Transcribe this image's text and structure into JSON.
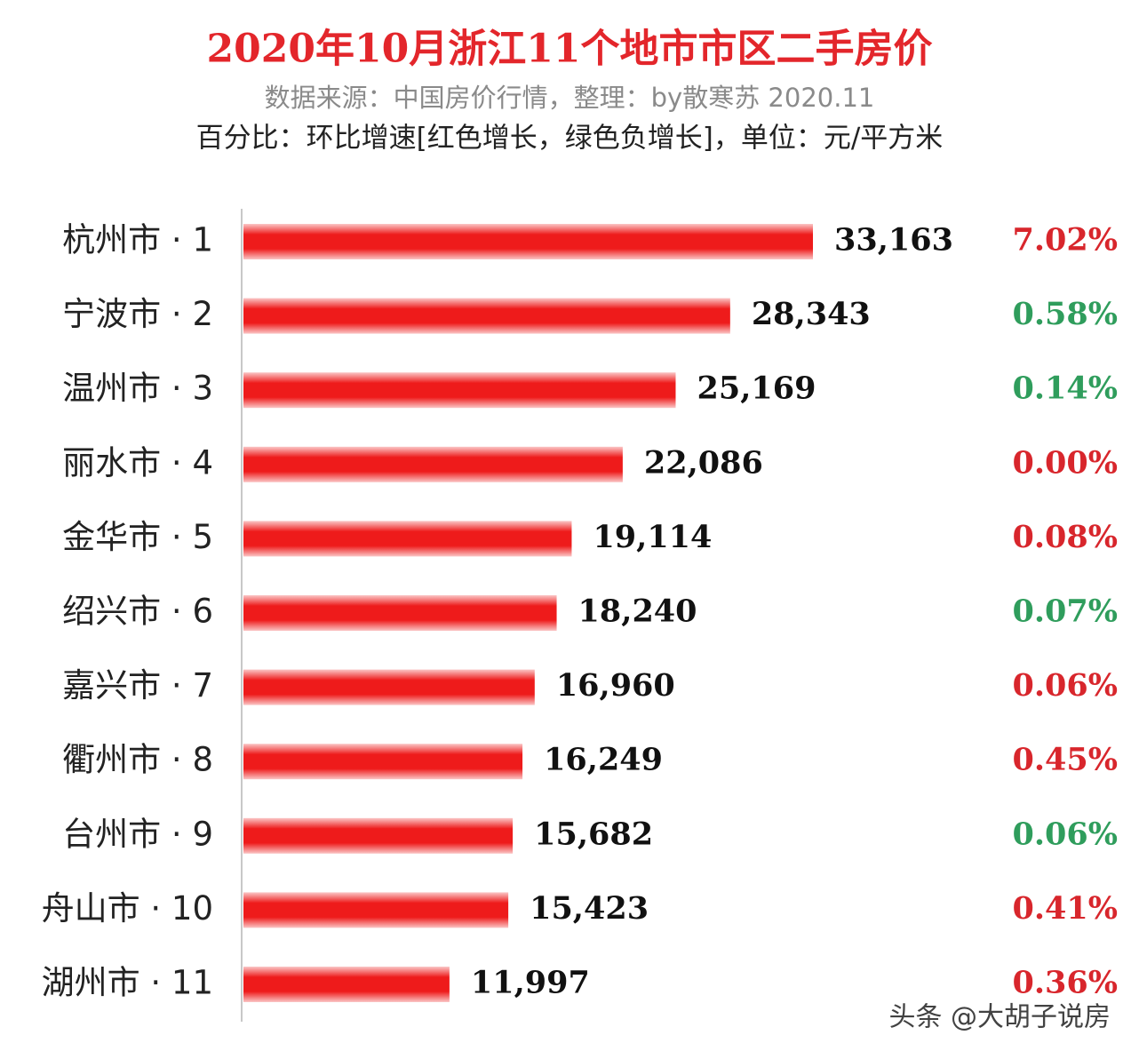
{
  "chart_data": {
    "type": "bar",
    "orientation": "horizontal",
    "title": "2020年10月浙江11个地市市区二手房价",
    "subtitle": "数据来源：中国房价行情，整理：by散寒苏  2020.11",
    "note": "百分比：环比增速[红色增长，绿色负增长]，单位：元/平方米",
    "title_color": "#e3262b",
    "color": "#ee1b1b",
    "categories": [
      "杭州市 · 1",
      "宁波市 · 2",
      "温州市 · 3",
      "丽水市 · 4",
      "金华市 · 5",
      "绍兴市 · 6",
      "嘉兴市 · 7",
      "衢州市 · 8",
      "台州市 · 9",
      "舟山市 · 10",
      "湖州市 · 11"
    ],
    "values": [
      33163,
      28343,
      25169,
      22086,
      19114,
      18240,
      16960,
      16249,
      15682,
      15423,
      11997
    ],
    "value_labels": [
      "33,163",
      "28,343",
      "25,169",
      "22,086",
      "19,114",
      "18,240",
      "16,960",
      "16,249",
      "15,682",
      "15,423",
      "11,997"
    ],
    "change": {
      "values": [
        7.02,
        0.58,
        0.14,
        0.0,
        0.08,
        0.07,
        0.06,
        0.45,
        0.06,
        0.41,
        0.36
      ],
      "value_labels": [
        "7.02%",
        "0.58%",
        "0.14%",
        "0.00%",
        "0.08%",
        "0.07%",
        "0.06%",
        "0.45%",
        "0.06%",
        "0.41%",
        "0.36%"
      ],
      "colors": [
        "#d8262c",
        "#2f9d5c",
        "#2f9d5c",
        "#d8262c",
        "#d8262c",
        "#2f9d5c",
        "#d8262c",
        "#d8262c",
        "#2f9d5c",
        "#d8262c",
        "#d8262c"
      ]
    }
  },
  "watermark": "头条 @大胡子说房"
}
